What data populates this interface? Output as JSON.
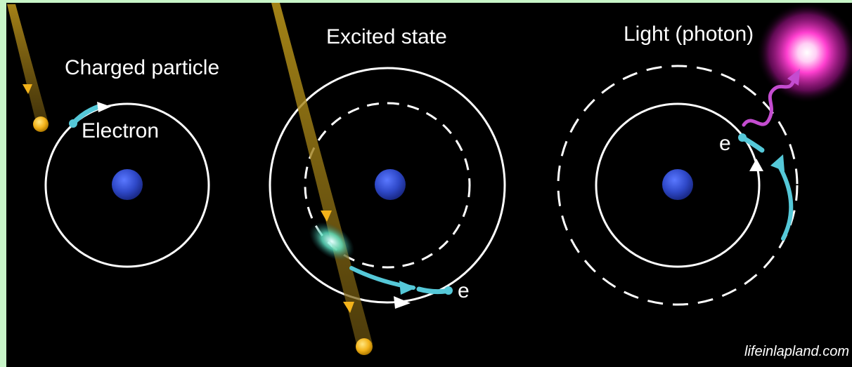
{
  "labels": {
    "charged_particle": "Charged particle",
    "electron": "Electron",
    "excited_state": "Excited state",
    "e_middle": "e",
    "light_photon": "Light (photon)",
    "e_right": "e"
  },
  "credit": "lifeinlapland.com",
  "colors": {
    "background": "#000000",
    "border": "#c8f5c8",
    "nucleus": "#2f49c9",
    "orbit": "#ffffff",
    "electron": "#55c8d8",
    "particle": "#f2b21a",
    "particle_trail": "#a8861a",
    "photon": "#ff66e0",
    "photon_wave": "#c44cd0"
  }
}
